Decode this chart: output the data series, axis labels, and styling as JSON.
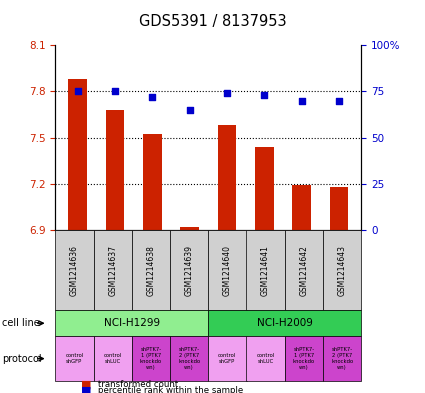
{
  "title": "GDS5391 / 8137953",
  "samples": [
    "GSM1214636",
    "GSM1214637",
    "GSM1214638",
    "GSM1214639",
    "GSM1214640",
    "GSM1214641",
    "GSM1214642",
    "GSM1214643"
  ],
  "transformed_count": [
    7.88,
    7.68,
    7.52,
    6.92,
    7.58,
    7.44,
    7.19,
    7.18
  ],
  "percentile_rank": [
    75,
    75,
    72,
    65,
    74,
    73,
    70,
    70
  ],
  "ylim_left": [
    6.9,
    8.1
  ],
  "yticks_left": [
    6.9,
    7.2,
    7.5,
    7.8,
    8.1
  ],
  "ylim_right": [
    0,
    100
  ],
  "yticks_right": [
    0,
    25,
    50,
    75,
    100
  ],
  "bar_color": "#cc2200",
  "scatter_color": "#0000cc",
  "bar_bottom": 6.9,
  "cell_lines": [
    {
      "label": "NCI-H1299",
      "start": 0,
      "end": 4,
      "color": "#90ee90"
    },
    {
      "label": "NCI-H2009",
      "start": 4,
      "end": 8,
      "color": "#33cc55"
    }
  ],
  "protocol_labels": [
    "control\nshGFP",
    "control\nshLUC",
    "shPTK7-\n1 (PTK7\nknockdo\nwn)",
    "shPTK7-\n2 (PTK7\nknockdo\nwn)",
    "control\nshGFP",
    "control\nshLUC",
    "shPTK7-\n1 (PTK7\nknockdo\nwn)",
    "shPTK7-\n2 (PTK7\nknockdo\nwn)"
  ],
  "protocol_colors": [
    "#f0a0f0",
    "#f0a0f0",
    "#cc44cc",
    "#cc44cc",
    "#f0a0f0",
    "#f0a0f0",
    "#cc44cc",
    "#cc44cc"
  ],
  "legend_bar_color": "#cc2200",
  "legend_scatter_color": "#0000cc",
  "left_tick_color": "#cc2200",
  "right_tick_color": "#0000cc",
  "grid_lines": [
    7.8,
    7.5,
    7.2
  ],
  "sample_row_color": "#d0d0d0"
}
